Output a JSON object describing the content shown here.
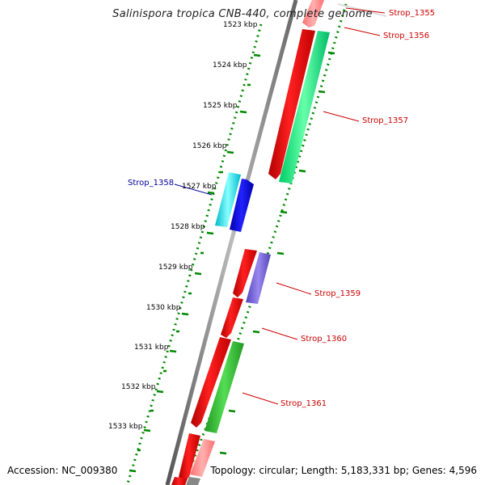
{
  "title": "Salinispora tropica CNB-440, complete genome",
  "footer": {
    "accession": "Accession: NC_009380",
    "stats": "Topology: circular; Length: 5,183,331 bp; Genes: 4,596"
  },
  "ruler_labels": [
    "1523 kbp",
    "1524 kbp",
    "1525 kbp",
    "1526 kbp",
    "1527 kbp",
    "1528 kbp",
    "1529 kbp",
    "1530 kbp",
    "1531 kbp",
    "1532 kbp",
    "1533 kbp"
  ],
  "gene_labels": [
    {
      "text": "Strop_1355",
      "color": "#cc0000"
    },
    {
      "text": "Strop_1356",
      "color": "#cc0000"
    },
    {
      "text": "Strop_1357",
      "color": "#cc0000"
    },
    {
      "text": "Strop_1358",
      "color": "#000099"
    },
    {
      "text": "Strop_1359",
      "color": "#cc0000"
    },
    {
      "text": "Strop_1360",
      "color": "#cc0000"
    },
    {
      "text": "Strop_1361",
      "color": "#cc0000"
    }
  ],
  "colors": {
    "cds": "#ff0000",
    "cds_faded": "#ff8080",
    "green_light": "#22ee88",
    "green": "#33cc33",
    "cyan": "#00e5ee",
    "blue": "#0000ee",
    "purple": "#7766dd",
    "ruler": "#008800",
    "backbone": "#7a7a7a"
  }
}
